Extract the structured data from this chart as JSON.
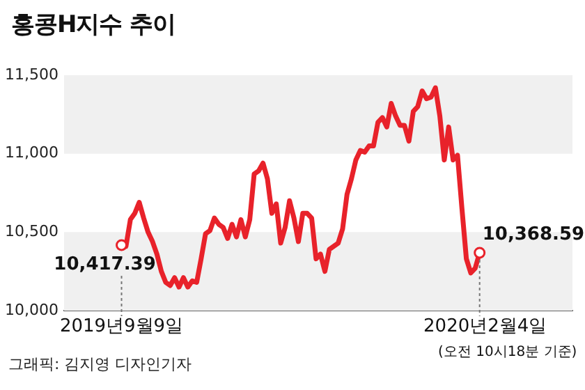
{
  "chart_data": {
    "type": "line",
    "title": "홍콩H지수 추이",
    "categories": [
      null,
      null,
      null,
      null,
      null,
      null,
      null,
      null,
      null,
      null,
      null,
      null,
      null,
      null,
      null,
      null,
      null,
      null,
      null,
      null,
      null,
      null,
      null,
      null,
      null,
      null,
      null,
      null,
      null,
      null,
      null,
      null,
      null,
      null,
      null,
      null,
      null,
      null,
      null,
      null,
      null,
      null,
      null,
      null,
      null,
      null,
      null,
      null,
      null,
      null,
      null,
      null,
      null,
      null,
      null,
      null,
      null,
      null,
      null,
      null,
      null,
      null,
      null,
      null,
      null,
      null,
      null,
      null,
      null,
      null,
      null,
      null,
      null,
      null,
      null,
      null,
      null,
      null,
      null,
      null,
      null,
      null,
      null,
      null,
      null,
      null,
      null,
      null,
      null,
      null,
      null,
      null,
      null,
      null,
      null,
      null,
      null,
      null,
      null,
      null,
      null,
      null,
      null,
      null,
      null,
      null,
      null,
      null,
      null,
      null,
      null,
      null,
      null,
      null,
      null,
      null
    ],
    "series": [
      {
        "color": "#e8222a",
        "values": [
          null,
          null,
          null,
          null,
          null,
          null,
          null,
          null,
          null,
          null,
          null,
          null,
          null,
          10417.39,
          10410,
          10580,
          10620,
          10690,
          10590,
          10500,
          10440,
          10360,
          10250,
          10180,
          10160,
          10210,
          10150,
          10210,
          10150,
          10190,
          10180,
          10330,
          10490,
          10510,
          10590,
          10550,
          10530,
          10460,
          10550,
          10470,
          10580,
          10470,
          10580,
          10870,
          10890,
          10940,
          10840,
          10620,
          10680,
          10430,
          10530,
          10700,
          10590,
          10440,
          10620,
          10620,
          10590,
          10330,
          10360,
          10250,
          10390,
          10410,
          10430,
          10520,
          10740,
          10840,
          10960,
          11020,
          11010,
          11050,
          11050,
          11200,
          11230,
          11170,
          11320,
          11240,
          11180,
          11180,
          11080,
          11270,
          11300,
          11400,
          11350,
          11360,
          11420,
          11240,
          10960,
          11170,
          10960,
          10990,
          10650,
          10330,
          10240,
          10270,
          10368.59,
          null,
          null,
          null,
          null,
          null,
          null,
          null,
          null,
          null,
          null,
          null,
          null,
          null,
          null,
          null,
          null,
          null,
          null,
          null,
          null,
          null
        ],
        "value_labels": [
          null,
          null,
          null,
          null,
          null,
          null,
          null,
          null,
          null,
          null,
          null,
          null,
          null,
          "10,417.39",
          null,
          null,
          null,
          null,
          null,
          null,
          null,
          null,
          null,
          null,
          null,
          null,
          null,
          null,
          null,
          null,
          null,
          null,
          null,
          null,
          null,
          null,
          null,
          null,
          null,
          null,
          null,
          null,
          null,
          null,
          null,
          null,
          null,
          null,
          null,
          null,
          null,
          null,
          null,
          null,
          null,
          null,
          null,
          null,
          null,
          null,
          null,
          null,
          null,
          null,
          null,
          null,
          null,
          null,
          null,
          null,
          null,
          null,
          null,
          null,
          null,
          null,
          null,
          null,
          null,
          null,
          null,
          null,
          null,
          null,
          null,
          null,
          null,
          null,
          null,
          null,
          null,
          null,
          null,
          null,
          "10,368.59",
          null,
          null,
          null,
          null,
          null,
          null,
          null,
          null,
          null,
          null,
          null,
          null,
          null,
          null,
          null,
          null,
          null,
          null,
          null,
          null,
          null
        ]
      }
    ],
    "ylim": [
      10000,
      11500
    ],
    "yticks": [
      {
        "value": 10000,
        "label": "10,000"
      },
      {
        "value": 10500,
        "label": "10,500"
      },
      {
        "value": 11000,
        "label": "11,000"
      },
      {
        "value": 11500,
        "label": "11,500"
      }
    ],
    "bands": [
      {
        "axis": "y",
        "from": 10000,
        "to": 10500,
        "color": "#f0f0f0"
      },
      {
        "axis": "y",
        "from": 11000,
        "to": 11500,
        "color": "#f0f0f0"
      }
    ],
    "tick_labels": "y",
    "legend": false,
    "grid": false,
    "annotations": [
      "2019년9월9일",
      "2020년2월4일",
      "(오전 10시18분 기준)",
      "그래픽: 김지영 디자인기자"
    ]
  }
}
